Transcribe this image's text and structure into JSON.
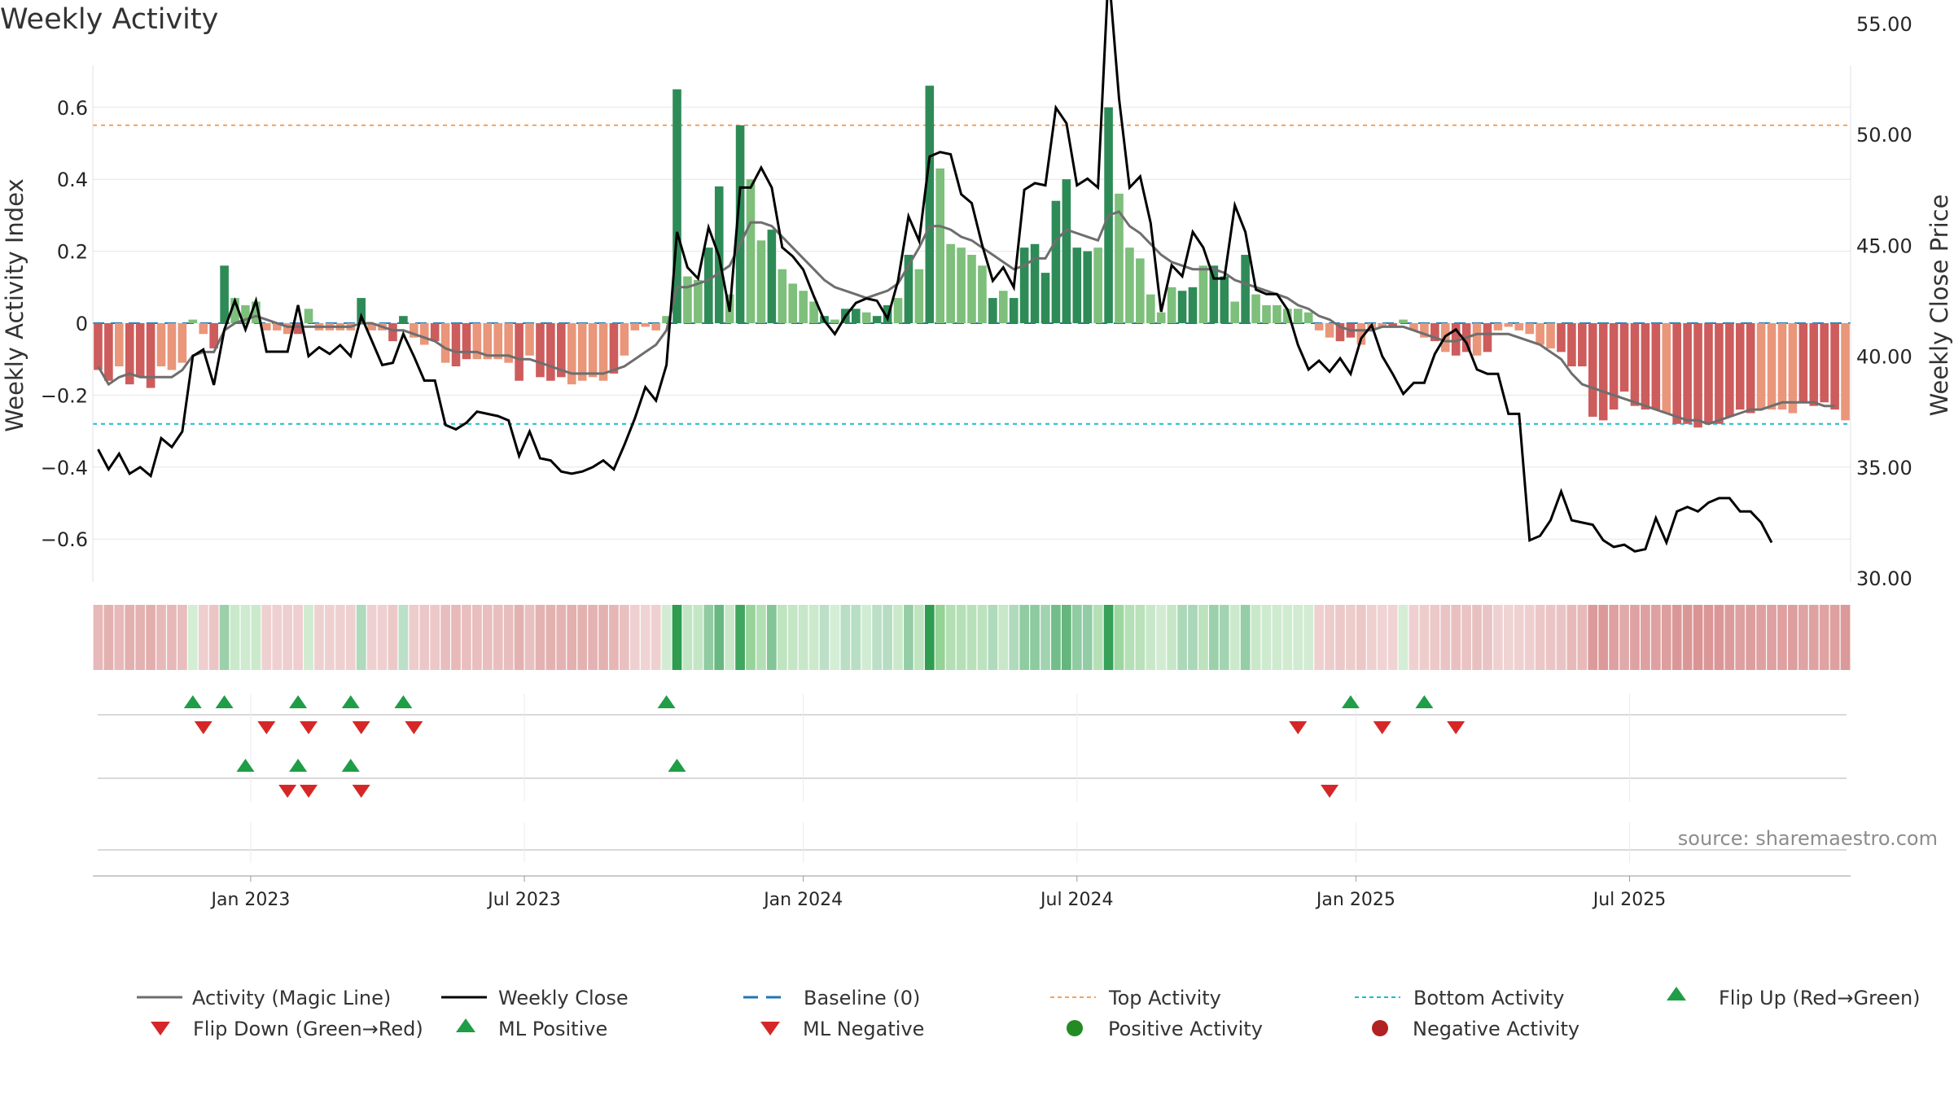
{
  "title": "Weekly Activity",
  "source": "source: sharemaestro.com",
  "colors": {
    "strong_green": "#2e8b57",
    "light_green": "#7dbf7b",
    "strong_red": "#cd5c5c",
    "light_red": "#e9967a",
    "magic_line": "#6e6e6e",
    "close": "#000000",
    "baseline": "#1f77b4",
    "top": "#f4a261",
    "bottom": "#17becf",
    "marker_green": "#1f9d47",
    "marker_red": "#d62728"
  },
  "chart_data": {
    "type": "bar",
    "title": "Weekly Activity",
    "ylabel": "Weekly Activity Index",
    "y2label": "Weekly Close Price",
    "ylim": [
      -0.72,
      0.72
    ],
    "y2lim": [
      30.0,
      57.5
    ],
    "yticks": [
      "0.6",
      "0.4",
      "0.2",
      "0",
      "−0.2",
      "−0.4",
      "−0.6"
    ],
    "ytick_values": [
      0.6,
      0.4,
      0.2,
      0,
      -0.2,
      -0.4,
      -0.6
    ],
    "y2ticks": [
      "55.00",
      "50.00",
      "45.00",
      "40.00",
      "35.00",
      "30.00"
    ],
    "y2tick_values": [
      55,
      50,
      45,
      40,
      35,
      30
    ],
    "xticks": [
      "Jan 2023",
      "Jul 2023",
      "Jan 2024",
      "Jul 2024",
      "Jan 2025",
      "Jul 2025"
    ],
    "xtick_weeks": [
      15,
      41,
      67.5,
      93.5,
      120,
      146
    ],
    "top_activity": 0.55,
    "bottom_activity": -0.28,
    "activity": [
      -0.13,
      -0.16,
      -0.12,
      -0.17,
      -0.15,
      -0.18,
      -0.12,
      -0.13,
      -0.11,
      0.01,
      -0.03,
      -0.07,
      0.16,
      0.07,
      0.05,
      0.06,
      -0.02,
      -0.02,
      -0.03,
      -0.03,
      0.04,
      -0.02,
      -0.02,
      -0.02,
      -0.02,
      0.07,
      -0.02,
      -0.02,
      -0.05,
      0.02,
      -0.04,
      -0.06,
      -0.05,
      -0.11,
      -0.12,
      -0.1,
      -0.1,
      -0.1,
      -0.1,
      -0.11,
      -0.16,
      -0.09,
      -0.15,
      -0.16,
      -0.15,
      -0.17,
      -0.16,
      -0.15,
      -0.16,
      -0.14,
      -0.09,
      -0.02,
      -0.01,
      -0.02,
      0.02,
      0.65,
      0.13,
      0.12,
      0.21,
      0.38,
      0.08,
      0.55,
      0.4,
      0.23,
      0.26,
      0.15,
      0.11,
      0.09,
      0.06,
      0.02,
      0.01,
      0.04,
      0.04,
      0.03,
      0.02,
      0.05,
      0.07,
      0.19,
      0.15,
      0.66,
      0.43,
      0.22,
      0.21,
      0.19,
      0.16,
      0.07,
      0.09,
      0.07,
      0.21,
      0.22,
      0.14,
      0.34,
      0.4,
      0.21,
      0.2,
      0.21,
      0.6,
      0.36,
      0.21,
      0.18,
      0.08,
      0.03,
      0.1,
      0.09,
      0.1,
      0.16,
      0.16,
      0.13,
      0.06,
      0.19,
      0.08,
      0.05,
      0.05,
      0.04,
      0.04,
      0.03,
      -0.02,
      -0.04,
      -0.05,
      -0.04,
      -0.06,
      -0.02,
      -0.01,
      -0.01,
      0.01,
      -0.02,
      -0.04,
      -0.05,
      -0.08,
      -0.09,
      -0.08,
      -0.09,
      -0.08,
      -0.02,
      -0.01,
      -0.02,
      -0.03,
      -0.06,
      -0.07,
      -0.08,
      -0.12,
      -0.12,
      -0.26,
      -0.27,
      -0.24,
      -0.19,
      -0.23,
      -0.24,
      -0.24,
      -0.25,
      -0.28,
      -0.28,
      -0.29,
      -0.28,
      -0.28,
      -0.26,
      -0.24,
      -0.25,
      -0.24,
      -0.24,
      -0.24,
      -0.25,
      -0.22,
      -0.23,
      -0.22,
      -0.24,
      -0.27
    ],
    "magic_line": [
      -0.12,
      -0.17,
      -0.15,
      -0.14,
      -0.15,
      -0.15,
      -0.15,
      -0.15,
      -0.13,
      -0.09,
      -0.08,
      -0.08,
      -0.02,
      0.0,
      0.01,
      0.02,
      0.01,
      0.0,
      -0.01,
      -0.01,
      -0.01,
      -0.01,
      -0.01,
      -0.01,
      -0.01,
      0.0,
      0.0,
      -0.01,
      -0.02,
      -0.02,
      -0.03,
      -0.04,
      -0.05,
      -0.07,
      -0.08,
      -0.08,
      -0.08,
      -0.09,
      -0.09,
      -0.09,
      -0.1,
      -0.1,
      -0.11,
      -0.12,
      -0.13,
      -0.14,
      -0.14,
      -0.14,
      -0.14,
      -0.13,
      -0.12,
      -0.1,
      -0.08,
      -0.06,
      -0.02,
      0.1,
      0.1,
      0.11,
      0.12,
      0.14,
      0.16,
      0.22,
      0.28,
      0.28,
      0.27,
      0.24,
      0.21,
      0.18,
      0.15,
      0.12,
      0.1,
      0.09,
      0.08,
      0.07,
      0.08,
      0.09,
      0.11,
      0.16,
      0.21,
      0.27,
      0.27,
      0.26,
      0.24,
      0.23,
      0.21,
      0.19,
      0.17,
      0.15,
      0.16,
      0.18,
      0.18,
      0.23,
      0.26,
      0.25,
      0.24,
      0.23,
      0.3,
      0.31,
      0.27,
      0.25,
      0.22,
      0.19,
      0.17,
      0.16,
      0.15,
      0.15,
      0.15,
      0.14,
      0.12,
      0.11,
      0.1,
      0.09,
      0.08,
      0.07,
      0.05,
      0.04,
      0.02,
      0.01,
      -0.01,
      -0.02,
      -0.02,
      -0.02,
      -0.01,
      -0.01,
      -0.01,
      -0.02,
      -0.03,
      -0.04,
      -0.05,
      -0.05,
      -0.04,
      -0.03,
      -0.03,
      -0.03,
      -0.03,
      -0.04,
      -0.05,
      -0.06,
      -0.08,
      -0.1,
      -0.14,
      -0.17,
      -0.18,
      -0.19,
      -0.2,
      -0.21,
      -0.22,
      -0.23,
      -0.24,
      -0.25,
      -0.26,
      -0.27,
      -0.27,
      -0.28,
      -0.27,
      -0.26,
      -0.25,
      -0.24,
      -0.24,
      -0.23,
      -0.22,
      -0.22,
      -0.22,
      -0.22,
      -0.23,
      -0.23
    ],
    "weekly_close": [
      35.8,
      34.9,
      35.6,
      34.7,
      35.0,
      34.6,
      36.3,
      35.9,
      36.6,
      40.0,
      40.3,
      38.7,
      41.2,
      42.5,
      41.2,
      42.5,
      40.2,
      40.2,
      40.2,
      42.3,
      40.0,
      40.4,
      40.1,
      40.5,
      40.0,
      41.8,
      40.7,
      39.6,
      39.7,
      41.0,
      40.0,
      38.9,
      38.9,
      36.9,
      36.7,
      37.0,
      37.5,
      37.4,
      37.3,
      37.1,
      35.5,
      36.6,
      35.4,
      35.3,
      34.8,
      34.7,
      34.8,
      35.0,
      35.3,
      34.9,
      36.0,
      37.2,
      38.6,
      38.0,
      39.6,
      45.6,
      44.0,
      43.5,
      45.8,
      44.5,
      42.0,
      47.6,
      47.6,
      48.5,
      47.6,
      44.9,
      44.5,
      43.9,
      42.7,
      41.6,
      41.0,
      41.8,
      42.4,
      42.6,
      42.5,
      41.7,
      43.4,
      46.3,
      45.2,
      49.0,
      49.2,
      49.1,
      47.3,
      46.9,
      45.0,
      43.4,
      44.0,
      43.1,
      47.5,
      47.8,
      47.7,
      51.2,
      50.5,
      47.7,
      48.0,
      47.6,
      57.4,
      51.6,
      47.6,
      48.1,
      46.0,
      42.0,
      44.1,
      43.6,
      45.6,
      44.9,
      43.5,
      43.5,
      46.8,
      45.6,
      43.0,
      42.8,
      42.8,
      42.1,
      40.5,
      39.4,
      39.8,
      39.3,
      39.9,
      39.2,
      40.8,
      41.4,
      40.0,
      39.2,
      38.3,
      38.8,
      38.8,
      40.1,
      40.9,
      41.2,
      40.6,
      39.4,
      39.2,
      39.2,
      37.4,
      37.4,
      31.7,
      31.9,
      32.6,
      33.9,
      32.6,
      32.5,
      32.4,
      31.7,
      31.4,
      31.5,
      31.2,
      31.3,
      32.7,
      31.6,
      33.0,
      33.2,
      33.0,
      33.4,
      33.6,
      33.6,
      33.0,
      33.0,
      32.5,
      31.6
    ],
    "strong_weeks": [
      0,
      1,
      3,
      4,
      5,
      11,
      12,
      19,
      25,
      28,
      29,
      32,
      34,
      35,
      40,
      42,
      43,
      44,
      49,
      55,
      58,
      59,
      61,
      64,
      69,
      71,
      72,
      74,
      75,
      77,
      79,
      85,
      87,
      88,
      89,
      90,
      91,
      92,
      93,
      94,
      96,
      103,
      104,
      106,
      107,
      109,
      118,
      119,
      123,
      127,
      129,
      130,
      132,
      139,
      140,
      141,
      142,
      143,
      144,
      145,
      146,
      147,
      148,
      150,
      151,
      152,
      153,
      154,
      155,
      156,
      157,
      162,
      163,
      164,
      165
    ],
    "flip_up_row1": [
      9,
      12,
      19,
      24,
      29,
      54,
      119,
      126
    ],
    "flip_down_row1": [
      10,
      16,
      20,
      25,
      30,
      114,
      122,
      129
    ],
    "ml_up_row2": [
      14,
      19,
      24,
      55
    ],
    "ml_down_row2": [
      18,
      20,
      25,
      117
    ],
    "legend": [
      "Activity (Magic Line)",
      "Weekly Close",
      "Baseline (0)",
      "Top Activity",
      "Bottom Activity",
      "Flip Up (Red→Green)",
      "Flip Down (Green→Red)",
      "ML Positive",
      "ML Negative",
      "Positive Activity",
      "Negative Activity"
    ]
  }
}
